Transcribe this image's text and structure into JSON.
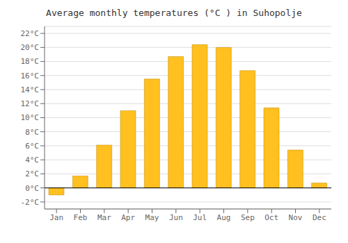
{
  "chart_data": {
    "type": "bar",
    "title": "Average monthly temperatures (°C ) in Suhopolje",
    "categories": [
      "Jan",
      "Feb",
      "Mar",
      "Apr",
      "May",
      "Jun",
      "Jul",
      "Aug",
      "Sep",
      "Oct",
      "Nov",
      "Dec"
    ],
    "values": [
      -1.0,
      1.7,
      6.1,
      11.0,
      15.5,
      18.7,
      20.4,
      20.0,
      16.7,
      11.4,
      5.4,
      0.7
    ],
    "color": "#FFC020",
    "ylim": [
      -3,
      23
    ],
    "yticks": [
      {
        "value": -2,
        "label": "-2°C"
      },
      {
        "value": 0,
        "label": "0°C"
      },
      {
        "value": 2,
        "label": "2°C"
      },
      {
        "value": 4,
        "label": "4°C"
      },
      {
        "value": 6,
        "label": "6°C"
      },
      {
        "value": 8,
        "label": "8°C"
      },
      {
        "value": 10,
        "label": "10°C"
      },
      {
        "value": 12,
        "label": "12°C"
      },
      {
        "value": 14,
        "label": "14°C"
      },
      {
        "value": 16,
        "label": "16°C"
      },
      {
        "value": 18,
        "label": "18°C"
      },
      {
        "value": 20,
        "label": "20°C"
      },
      {
        "value": 22,
        "label": "22°C"
      }
    ],
    "grid": true
  }
}
